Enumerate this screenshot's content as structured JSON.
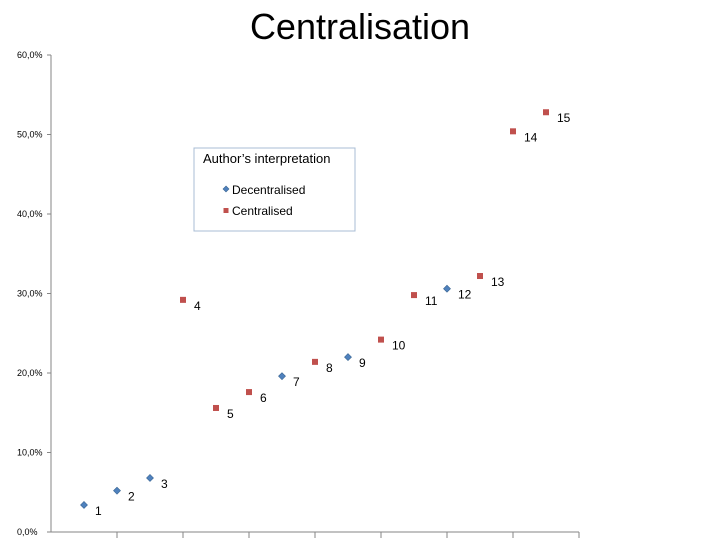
{
  "chart_data": {
    "type": "scatter",
    "title": "Centralisation",
    "xlabel": "",
    "ylabel": "",
    "xlim": [
      0,
      15
    ],
    "ylim": [
      0,
      60
    ],
    "y_ticks": [
      "0,0%",
      "10,0%",
      "20,0%",
      "30,0%",
      "40,0%",
      "50,0%",
      "60,0%"
    ],
    "grid": false,
    "legend": {
      "title": "Author’s interpretation",
      "placement": "upper-left-inside",
      "entries": [
        "Decentralised",
        "Centralised"
      ]
    },
    "colors": {
      "Decentralised": "#4f81bd",
      "Centralised": "#c0504d"
    },
    "series": [
      {
        "name": "Decentralised",
        "points": [
          {
            "x": 1,
            "y": 3.4,
            "label": "1"
          },
          {
            "x": 2,
            "y": 5.2,
            "label": "2"
          },
          {
            "x": 3,
            "y": 6.8,
            "label": "3"
          },
          {
            "x": 7,
            "y": 19.6,
            "label": "7"
          },
          {
            "x": 9,
            "y": 22.0,
            "label": "9"
          },
          {
            "x": 12,
            "y": 30.6,
            "label": "12"
          }
        ]
      },
      {
        "name": "Centralised",
        "points": [
          {
            "x": 4,
            "y": 29.2,
            "label": "4"
          },
          {
            "x": 5,
            "y": 15.6,
            "label": "5"
          },
          {
            "x": 6,
            "y": 17.6,
            "label": "6"
          },
          {
            "x": 8,
            "y": 21.4,
            "label": "8"
          },
          {
            "x": 10,
            "y": 24.2,
            "label": "10"
          },
          {
            "x": 11,
            "y": 29.8,
            "label": "11"
          },
          {
            "x": 13,
            "y": 32.2,
            "label": "13"
          },
          {
            "x": 14,
            "y": 50.4,
            "label": "14"
          },
          {
            "x": 15,
            "y": 52.8,
            "label": "15"
          }
        ]
      }
    ]
  }
}
